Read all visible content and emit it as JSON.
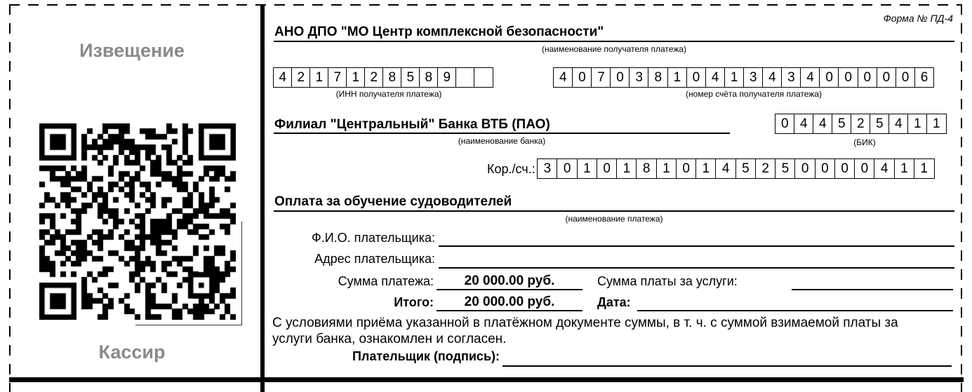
{
  "form": {
    "form_label": "Форма № ПД-4",
    "left": {
      "notice_label": "Извещение",
      "cashier_label": "Кассир"
    },
    "recipient": {
      "name": "АНО ДПО \"МО Центр комплексной безопасности\"",
      "caption": "(наименование получателя платежа)"
    },
    "inn": {
      "digits": "4217128589",
      "cells": 12,
      "caption": "(ИНН получателя платежа)"
    },
    "account": {
      "digits": "40703810413434000006",
      "cells": 20,
      "caption": "(номер счёта получателя платежа)"
    },
    "bank": {
      "name": "Филиал \"Центральный\" Банка ВТБ (ПАО)",
      "caption": "(наименование банка)"
    },
    "bik": {
      "digits": "044525411",
      "cells": 9,
      "caption": "(БИК)"
    },
    "corr": {
      "label": "Кор./сч.:",
      "digits": "30101810145250000411",
      "cells": 20
    },
    "payment": {
      "name": "Оплата за обучение судоводителей",
      "caption": "(наименование платежа)"
    },
    "payer": {
      "fio_label": "Ф.И.О. плательщика:",
      "fio_value": "",
      "address_label": "Адрес плательщика:",
      "address_value": ""
    },
    "sums": {
      "sum_label": "Сумма платежа:",
      "sum_value": "20 000.00 руб.",
      "service_label": "Сумма платы за услуги:",
      "service_value": "",
      "total_label": "Итого:",
      "total_value": "20 000.00 руб.",
      "date_label": "Дата:",
      "date_value": ""
    },
    "agreement": "С условиями приёма указанной в платёжном документе суммы, в т. ч. с суммой взимаемой платы за услуги банка, ознакомлен и согласен.",
    "signature_label": "Плательщик (подпись):",
    "signature_value": ""
  },
  "colors": {
    "ink": "#000000",
    "muted_gray": "#8a8a8a",
    "background": "#ffffff"
  }
}
